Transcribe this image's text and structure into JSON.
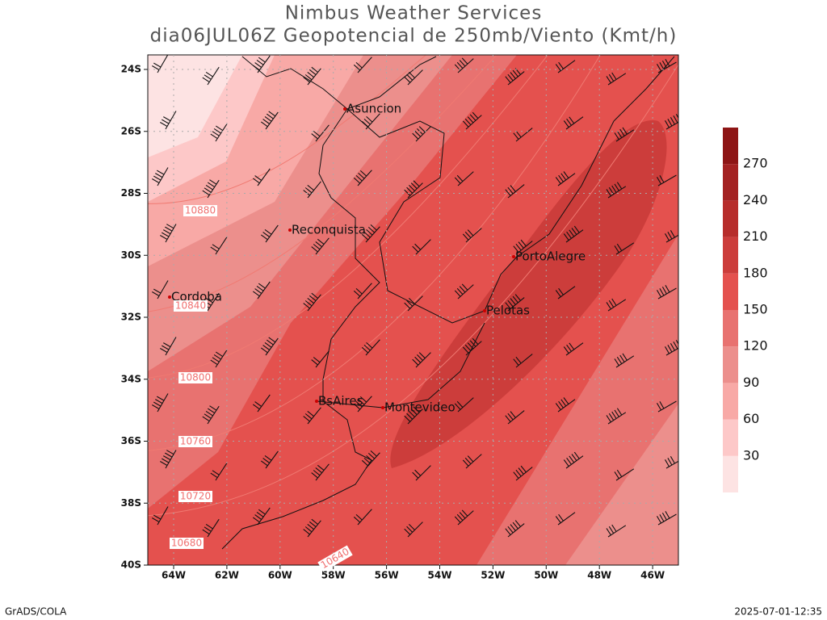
{
  "header": {
    "title": "Nimbus Weather Services",
    "subtitle": "dia06JUL06Z Geopotencial de 250mb/Viento (Kmt/h)"
  },
  "map": {
    "lat_labels": [
      "24S",
      "26S",
      "28S",
      "30S",
      "32S",
      "34S",
      "36S",
      "38S",
      "40S"
    ],
    "lon_labels": [
      "64W",
      "62W",
      "60W",
      "58W",
      "56W",
      "54W",
      "52W",
      "50W",
      "48W",
      "46W"
    ],
    "cities": [
      "Asuncion",
      "Reconquista",
      "Cordoba",
      "PortoAlegre",
      "Pelotas",
      "BsAires",
      "Montevideo"
    ],
    "contour_labels": [
      "10880",
      "10840",
      "10800",
      "10760",
      "10720",
      "10680",
      "10640"
    ]
  },
  "colorbar": {
    "labels": [
      30,
      60,
      90,
      120,
      150,
      180,
      210,
      240,
      270
    ],
    "colors": [
      "#fde3e3",
      "#fdc8c8",
      "#f8a9a6",
      "#ec8f8c",
      "#e87270",
      "#e4514e",
      "#cc3d3b",
      "#b72d2b",
      "#a42222",
      "#8e1515"
    ]
  },
  "footer": {
    "left": "GrADS/COLA",
    "right": "2025-07-01-12:35"
  }
}
